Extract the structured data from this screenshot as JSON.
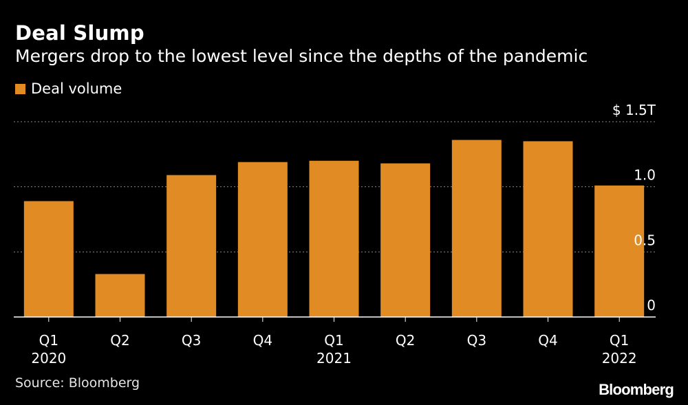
{
  "title": "Deal Slump",
  "subtitle": "Mergers drop to the lowest level since the depths of the pandemic",
  "source": "Source: Bloomberg",
  "brand": "Bloomberg",
  "colors": {
    "bar": "#e08b23",
    "background": "#000000",
    "grid": "#8c8c8c",
    "text": "#ffffff"
  },
  "chart_data": {
    "type": "bar",
    "categories": [
      "Q1",
      "Q2",
      "Q3",
      "Q4",
      "Q1",
      "Q2",
      "Q3",
      "Q4",
      "Q1"
    ],
    "year_labels": [
      "2020",
      "",
      "",
      "",
      "2021",
      "",
      "",
      "",
      "2022"
    ],
    "series": [
      {
        "name": "Deal volume",
        "values": [
          0.89,
          0.33,
          1.09,
          1.19,
          1.2,
          1.18,
          1.36,
          1.35,
          1.01
        ]
      }
    ],
    "y_ticks": [
      {
        "value": 0,
        "label": "0"
      },
      {
        "value": 0.5,
        "label": "0.5"
      },
      {
        "value": 1.0,
        "label": "1.0"
      },
      {
        "value": 1.5,
        "label": "$ 1.5T"
      }
    ],
    "ylim": [
      0,
      1.5
    ],
    "grid": true,
    "legend_position": "top-left"
  }
}
